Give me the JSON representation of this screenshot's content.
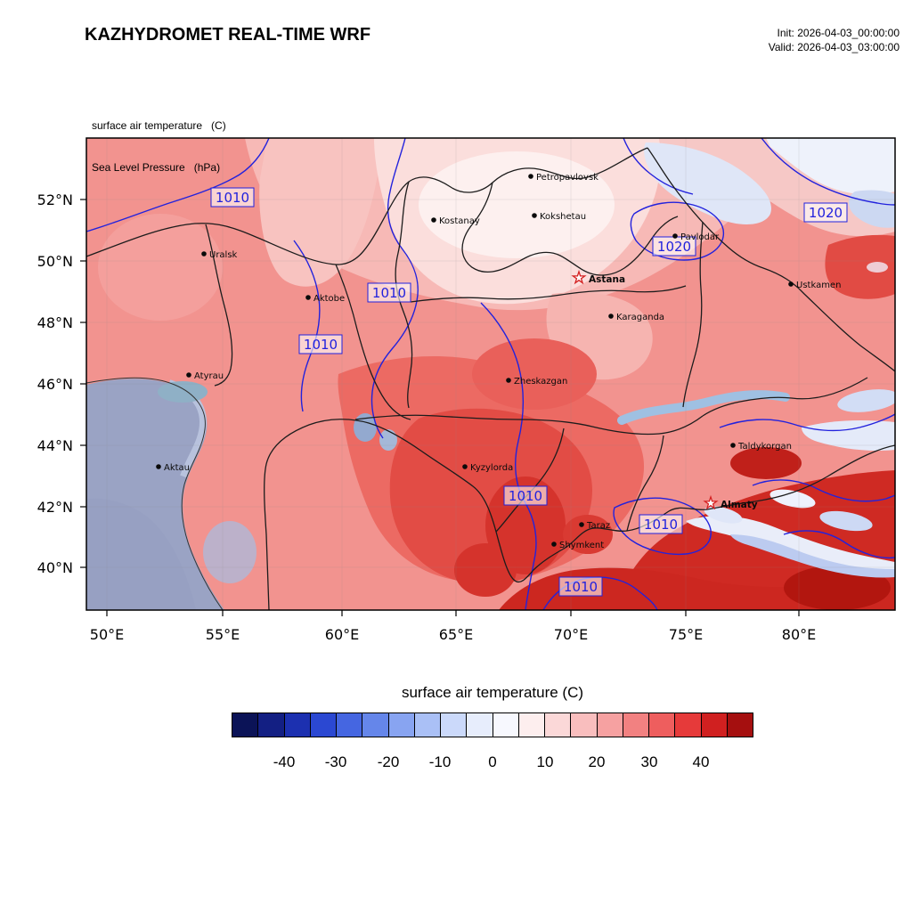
{
  "header": {
    "title": "KAZHYDROMET REAL-TIME WRF",
    "init_label": "Init: 2026-04-03_00:00:00",
    "valid_label": "Valid: 2026-04-03_03:00:00"
  },
  "map": {
    "field_label": "surface air temperature   (C)",
    "pressure_label": "Sea Level Pressure   (hPa)",
    "lat_ticks": [
      "52°N",
      "50°N",
      "48°N",
      "46°N",
      "44°N",
      "42°N",
      "40°N"
    ],
    "lon_ticks": [
      "50°E",
      "55°E",
      "60°E",
      "65°E",
      "70°E",
      "75°E",
      "80°E"
    ],
    "cities": [
      {
        "name": "Petropavlovsk"
      },
      {
        "name": "Kostanay"
      },
      {
        "name": "Kokshetau"
      },
      {
        "name": "Pavlodar"
      },
      {
        "name": "Uralsk"
      },
      {
        "name": "Astana",
        "capital": true
      },
      {
        "name": "Aktobe"
      },
      {
        "name": "Ustkamen"
      },
      {
        "name": "Karaganda"
      },
      {
        "name": "Atyrau"
      },
      {
        "name": "Zheskazgan"
      },
      {
        "name": "Taldykorgan"
      },
      {
        "name": "Aktau"
      },
      {
        "name": "Kyzylorda"
      },
      {
        "name": "Almaty",
        "capital": true
      },
      {
        "name": "Taraz"
      },
      {
        "name": "Shymkent"
      }
    ],
    "isobar_labels": [
      "1010",
      "1020",
      "1020",
      "1010",
      "1010",
      "1010",
      "1010",
      "1010"
    ]
  },
  "colorbar": {
    "title": "surface air temperature  (C)",
    "ticks": [
      "-40",
      "-30",
      "-20",
      "-10",
      "0",
      "10",
      "20",
      "30",
      "40"
    ],
    "colors": [
      "#0b1357",
      "#131f83",
      "#1c30b0",
      "#2b48d2",
      "#4566e1",
      "#6586ea",
      "#88a4f1",
      "#aac0f6",
      "#cbd9fa",
      "#e7edfc",
      "#f7f8fe",
      "#fdeeee",
      "#fbd8d8",
      "#f9bebe",
      "#f6a1a1",
      "#f28181",
      "#ee5e5e",
      "#e63a3a",
      "#d02020",
      "#a50f0f"
    ]
  },
  "colors": {
    "isobar_blue": "#2222dd",
    "border_black": "#1c1c1c",
    "capital_star_red": "#d42020"
  }
}
